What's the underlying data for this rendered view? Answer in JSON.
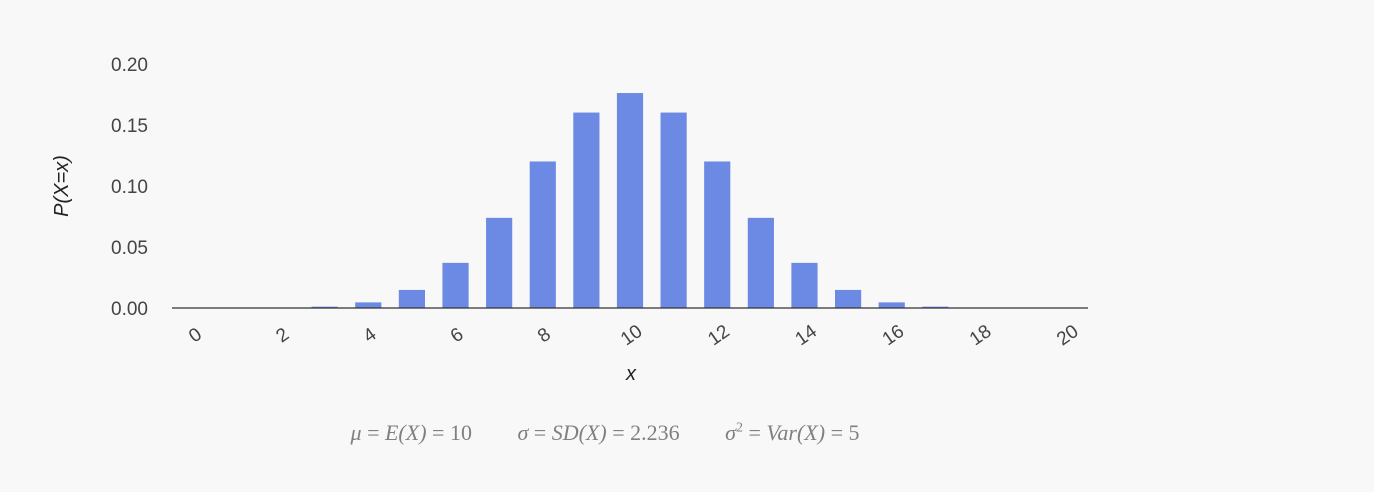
{
  "chart_data": {
    "type": "bar",
    "title": "",
    "xlabel": "x",
    "ylabel": "P(X=x)",
    "x": [
      0,
      1,
      2,
      3,
      4,
      5,
      6,
      7,
      8,
      9,
      10,
      11,
      12,
      13,
      14,
      15,
      16,
      17,
      18,
      19,
      20
    ],
    "values": [
      0.0,
      0.0,
      0.0002,
      0.0011,
      0.0046,
      0.0148,
      0.037,
      0.0739,
      0.1201,
      0.1602,
      0.1762,
      0.1602,
      0.1201,
      0.0739,
      0.037,
      0.0148,
      0.0046,
      0.0011,
      0.0002,
      0.0,
      0.0
    ],
    "xticks": [
      "0",
      "2",
      "4",
      "6",
      "8",
      "10",
      "12",
      "14",
      "16",
      "18",
      "20"
    ],
    "yticks": [
      "0.00",
      "0.05",
      "0.10",
      "0.15",
      "0.20"
    ],
    "ylim": [
      0,
      0.2
    ],
    "grid": false,
    "bar_color": "#6c89e3"
  },
  "stats": {
    "mean": {
      "lhs": "μ",
      "mid": "E(X)",
      "value": "10"
    },
    "sd": {
      "lhs": "σ",
      "mid": "SD(X)",
      "value": "2.236"
    },
    "variance": {
      "lhs": "σ",
      "exp": "2",
      "mid": "Var(X)",
      "value": "5"
    }
  }
}
